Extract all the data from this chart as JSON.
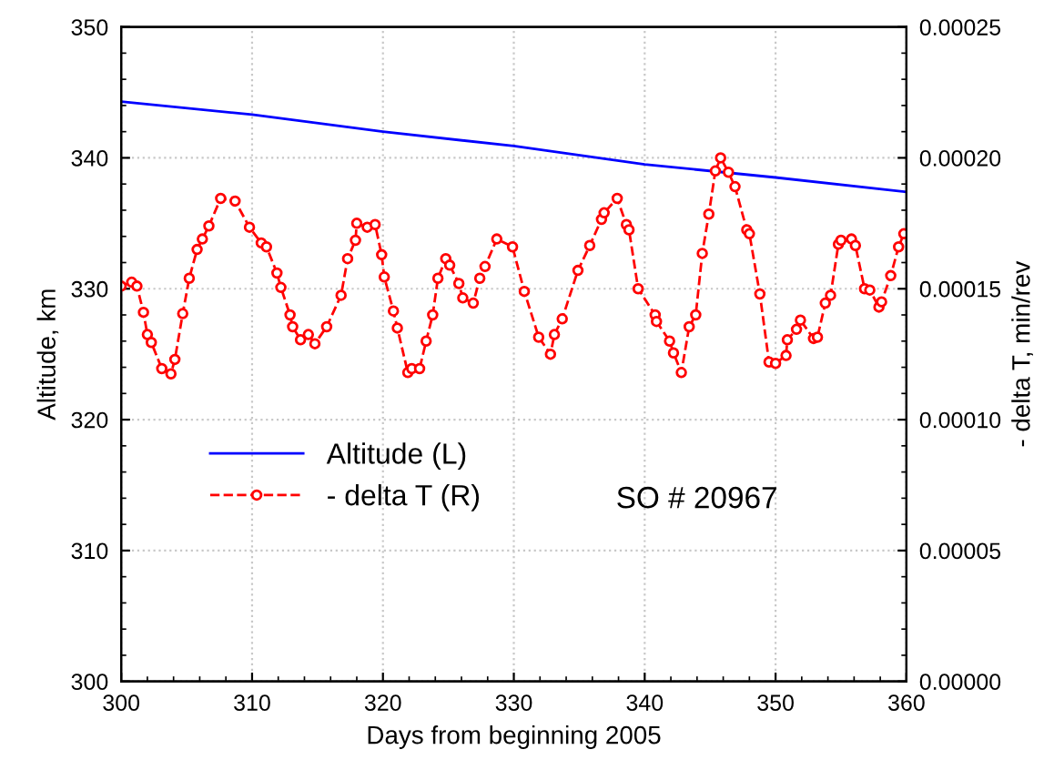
{
  "chart_data": {
    "type": "line",
    "xlabel": "Days from beginning 2005",
    "ylabel": "Altitude, km",
    "y2label": "- delta T, min/rev",
    "xlim": [
      300,
      360
    ],
    "xticks": [
      300,
      310,
      320,
      330,
      340,
      350,
      360
    ],
    "ylim": [
      300,
      350
    ],
    "yticks": [
      300,
      310,
      320,
      330,
      340,
      350
    ],
    "y2lim": [
      0,
      0.00025
    ],
    "y2ticks": [
      {
        "value": 0,
        "label": "0.00000"
      },
      {
        "value": 5e-05,
        "label": "0.00005"
      },
      {
        "value": 0.0001,
        "label": "0.00010"
      },
      {
        "value": 0.00015,
        "label": "0.00015"
      },
      {
        "value": 0.0002,
        "label": "0.00020"
      },
      {
        "value": 0.00025,
        "label": "0.00025"
      }
    ],
    "grid": true,
    "legend": "lower left",
    "annotations": [
      "SO # 20967"
    ],
    "series": [
      {
        "name": "Altitude (L)",
        "color": "#0000ff",
        "marker": "none",
        "line_style": "solid",
        "x": [
          300,
          310,
          320,
          330,
          340,
          350,
          360
        ],
        "values": [
          344.3,
          343.3,
          342.0,
          340.9,
          339.5,
          338.5,
          337.4
        ]
      },
      {
        "name": "- delta T (R)",
        "color": "#ff0000",
        "axis": "y2",
        "marker": "circle",
        "line_style": "dashed",
        "x": [
          300.0,
          300.8,
          301.2,
          301.7,
          302.0,
          302.3,
          303.1,
          303.8,
          304.1,
          304.7,
          305.2,
          305.8,
          306.2,
          306.7,
          307.6,
          308.7,
          309.8,
          310.7,
          311.1,
          311.9,
          312.2,
          312.9,
          313.1,
          313.7,
          314.3,
          314.8,
          315.7,
          316.8,
          317.3,
          317.9,
          318.0,
          318.8,
          319.4,
          319.9,
          320.1,
          320.8,
          321.1,
          321.9,
          322.2,
          322.8,
          323.3,
          323.8,
          324.2,
          324.8,
          325.1,
          325.8,
          326.1,
          326.9,
          327.4,
          327.8,
          328.7,
          329.9,
          330.8,
          331.9,
          332.8,
          333.1,
          333.7,
          334.9,
          335.8,
          336.7,
          336.9,
          337.9,
          338.6,
          338.8,
          339.5,
          340.8,
          340.9,
          341.9,
          342.2,
          342.8,
          343.4,
          343.9,
          344.4,
          344.9,
          345.4,
          345.8,
          346.4,
          346.9,
          347.8,
          348.0,
          348.8,
          349.5,
          350.0,
          350.8,
          350.9,
          351.6,
          351.9,
          352.9,
          353.2,
          353.8,
          354.2,
          354.8,
          355.0,
          355.8,
          356.1,
          356.8,
          357.2,
          357.9,
          358.1,
          358.8,
          359.4,
          359.8
        ],
        "values": [
          0.000151,
          0.0001525,
          0.000151,
          0.000141,
          0.0001325,
          0.0001295,
          0.0001195,
          0.0001175,
          0.000123,
          0.0001405,
          0.000154,
          0.000165,
          0.000169,
          0.000174,
          0.0001845,
          0.0001835,
          0.0001735,
          0.0001675,
          0.000166,
          0.000156,
          0.0001505,
          0.00014,
          0.0001355,
          0.0001305,
          0.0001325,
          0.000129,
          0.0001355,
          0.0001475,
          0.0001615,
          0.0001685,
          0.000175,
          0.0001735,
          0.0001745,
          0.000163,
          0.0001545,
          0.0001415,
          0.000135,
          0.000118,
          0.0001195,
          0.0001195,
          0.00013,
          0.00014,
          0.000154,
          0.0001615,
          0.000159,
          0.000152,
          0.0001465,
          0.0001445,
          0.000154,
          0.0001585,
          0.000169,
          0.000166,
          0.000149,
          0.0001315,
          0.000125,
          0.0001325,
          0.0001385,
          0.000157,
          0.0001665,
          0.0001765,
          0.000179,
          0.0001845,
          0.0001745,
          0.0001725,
          0.00015,
          0.00014,
          0.0001375,
          0.00013,
          0.0001255,
          0.000118,
          0.0001355,
          0.00014,
          0.0001635,
          0.0001785,
          0.000195,
          0.0002,
          0.0001945,
          0.000189,
          0.0001725,
          0.000171,
          0.000148,
          0.000122,
          0.0001215,
          0.0001245,
          0.0001305,
          0.0001345,
          0.000138,
          0.000131,
          0.0001315,
          0.0001445,
          0.0001475,
          0.000167,
          0.0001685,
          0.000169,
          0.0001665,
          0.00015,
          0.0001495,
          0.000143,
          0.000145,
          0.000155,
          0.000166,
          0.000171
        ]
      }
    ]
  }
}
